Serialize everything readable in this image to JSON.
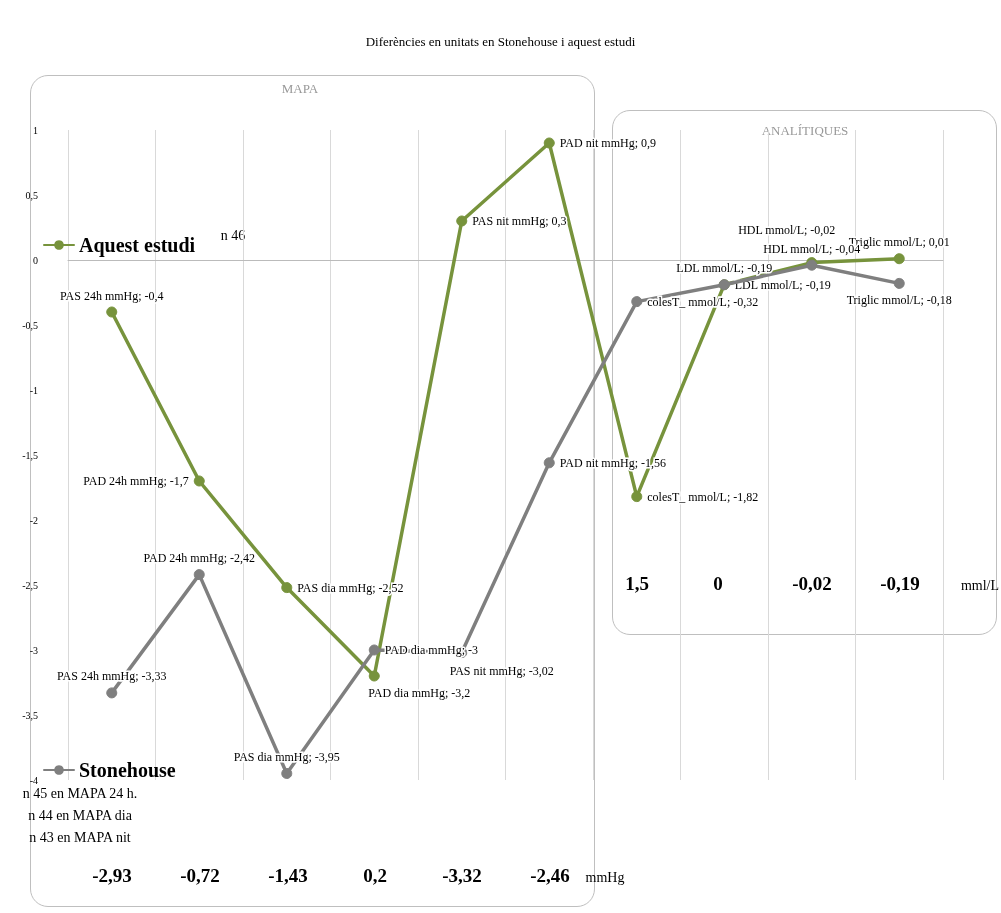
{
  "chart_data": {
    "type": "line",
    "title": "Diferències en unitats en Stonehouse i aquest estudi",
    "categories": [
      null,
      null,
      null,
      null,
      null,
      null,
      null,
      null,
      null,
      null
    ],
    "series": [
      {
        "name": "Aquest estudi",
        "color": "#77933c",
        "values": [
          -0.4,
          -1.7,
          -2.52,
          -3.2,
          0.3,
          0.9,
          -1.82,
          -0.19,
          -0.02,
          0.01
        ],
        "value_labels": [
          "PAS 24h mmHg; -0,4",
          "PAD 24h mmHg; -1,7",
          "PAS dia mmHg; -2,52",
          "PAD dia mmHg; -3,2",
          "PAS nit mmHg; 0,3",
          "PAD nit mmHg; 0,9",
          "colesT_ mmol/L; -1,82",
          "LDL mmol/L; -0,19",
          "HDL mmol/L; -0,02",
          "Triglic mmol/L; 0,01"
        ]
      },
      {
        "name": "Stonehouse",
        "color": "#7f7f7f",
        "values": [
          -3.33,
          -2.42,
          -3.95,
          -3,
          -3.02,
          -1.56,
          -0.32,
          -0.19,
          -0.04,
          -0.18
        ],
        "value_labels": [
          "PAS 24h mmHg; -3,33",
          "PAD 24h mmHg; -2,42",
          "PAS dia mmHg; -3,95",
          "PAD dia mmHg; -3",
          "PAS nit mmHg; -3,02",
          "PAD nit mmHg; -1,56",
          "colesT_ mmol/L; -0,32",
          "LDL mmol/L; -0,19",
          "HDL mmol/L; -0,04",
          "Triglic mmol/L; -0,18"
        ]
      }
    ],
    "ylim": [
      -4,
      1
    ],
    "yticks": [
      {
        "value": -4,
        "label": "-4"
      },
      {
        "value": -3.5,
        "label": "-3,5"
      },
      {
        "value": -3,
        "label": "-3"
      },
      {
        "value": -2.5,
        "label": "-2,5"
      },
      {
        "value": -2,
        "label": "-2"
      },
      {
        "value": -1.5,
        "label": "-1,5"
      },
      {
        "value": -1,
        "label": "-1"
      },
      {
        "value": -0.5,
        "label": "-0,5"
      },
      {
        "value": 0,
        "label": "0"
      },
      {
        "value": 0.5,
        "label": "0,5"
      },
      {
        "value": 1,
        "label": "1"
      }
    ],
    "grid": "x",
    "legend": "left",
    "marker": "circle",
    "line_style": "solid",
    "annotations": [
      "MAPA",
      "ANALÍTIQUES",
      "n 46",
      "n 45 en MAPA 24 h.",
      "n 44 en MAPA dia",
      "n 43 en MAPA nit",
      "-2,93",
      "-0,72",
      "-1,43",
      "0,2",
      "-3,32",
      "-2,46",
      "mmHg",
      "1,5",
      "0",
      "-0,02",
      "-0,19",
      "mml/L"
    ]
  }
}
